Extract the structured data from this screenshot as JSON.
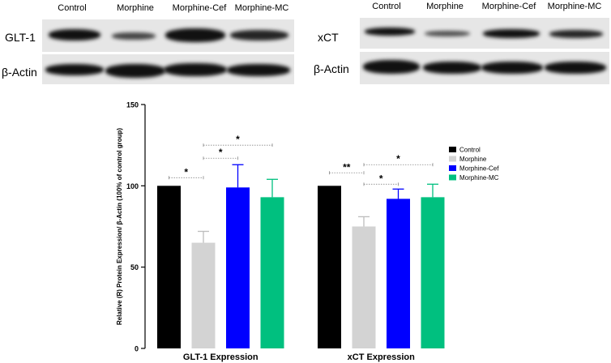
{
  "blots": {
    "left": {
      "lanes": [
        "Control",
        "Morphine",
        "Morphine-Cef",
        "Morphine-MC"
      ],
      "target": "GLT-1",
      "loading": "β-Actin"
    },
    "right": {
      "lanes": [
        "Control",
        "Morphine",
        "Morphine-Cef",
        "Morphine-MC"
      ],
      "target": "xCT",
      "loading": "β-Actin"
    }
  },
  "chart_data": {
    "type": "bar",
    "categories": [
      "GLT-1 Expression",
      "xCT Expression"
    ],
    "series": [
      {
        "name": "Control",
        "color": "#000000",
        "values": [
          100,
          100
        ],
        "errors": [
          0,
          0
        ]
      },
      {
        "name": "Morphine",
        "color": "#d3d3d3",
        "values": [
          65,
          75
        ],
        "errors": [
          7,
          6
        ]
      },
      {
        "name": "Morphine-Cef",
        "color": "#0000ff",
        "values": [
          99,
          92
        ],
        "errors": [
          14,
          6
        ]
      },
      {
        "name": "Morphine-MC",
        "color": "#00c07f",
        "values": [
          93,
          93
        ],
        "errors": [
          11,
          8
        ]
      }
    ],
    "ylabel": "Relative (R) Protein Expression/ β-Actin (100% of control group)",
    "xlabel": "",
    "ylim": [
      0,
      150
    ],
    "yticks": [
      0,
      50,
      100,
      150
    ],
    "legend_position": "right",
    "significance": [
      {
        "group": 0,
        "from": 0,
        "to": 1,
        "label": "*",
        "y": 105
      },
      {
        "group": 0,
        "from": 1,
        "to": 2,
        "label": "*",
        "y": 117
      },
      {
        "group": 0,
        "from": 1,
        "to": 3,
        "label": "*",
        "y": 125
      },
      {
        "group": 1,
        "from": 0,
        "to": 1,
        "label": "**",
        "y": 108
      },
      {
        "group": 1,
        "from": 1,
        "to": 2,
        "label": "*",
        "y": 101
      },
      {
        "group": 1,
        "from": 1,
        "to": 3,
        "label": "*",
        "y": 113
      }
    ]
  }
}
